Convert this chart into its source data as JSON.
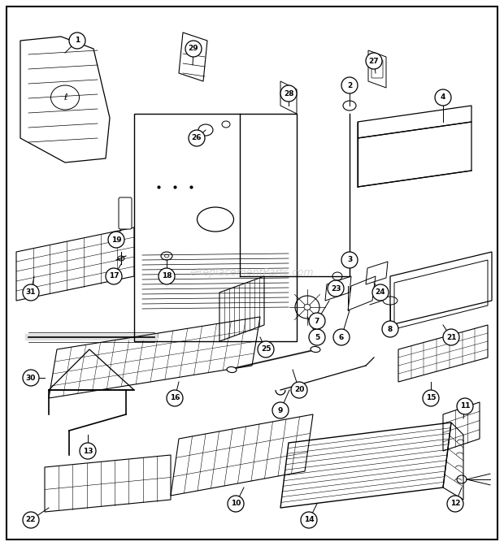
{
  "bg_color": "#ffffff",
  "watermark": "eReplacementParts.com",
  "watermark_color": "#bbbbbb",
  "border_color": "#000000",
  "line_color": "#000000"
}
